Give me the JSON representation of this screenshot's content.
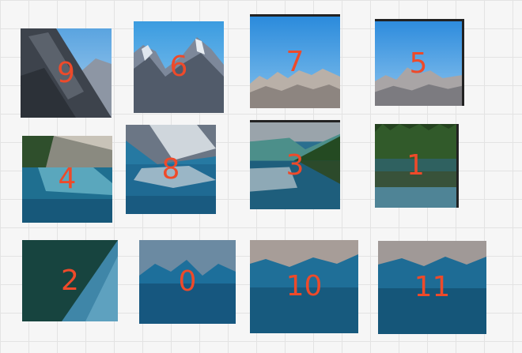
{
  "puzzle": {
    "tiles": [
      {
        "id": "tile-9",
        "label": "9"
      },
      {
        "id": "tile-6",
        "label": "6"
      },
      {
        "id": "tile-7",
        "label": "7"
      },
      {
        "id": "tile-5",
        "label": "5"
      },
      {
        "id": "tile-4",
        "label": "4"
      },
      {
        "id": "tile-8",
        "label": "8"
      },
      {
        "id": "tile-3",
        "label": "3"
      },
      {
        "id": "tile-1",
        "label": "1"
      },
      {
        "id": "tile-2",
        "label": "2"
      },
      {
        "id": "tile-0",
        "label": "0"
      },
      {
        "id": "tile-10",
        "label": "10"
      },
      {
        "id": "tile-11",
        "label": "11"
      }
    ]
  },
  "colors": {
    "label": "#ee4a2a",
    "canvas": "#f6f6f6",
    "grid": "#e3e3e3"
  }
}
